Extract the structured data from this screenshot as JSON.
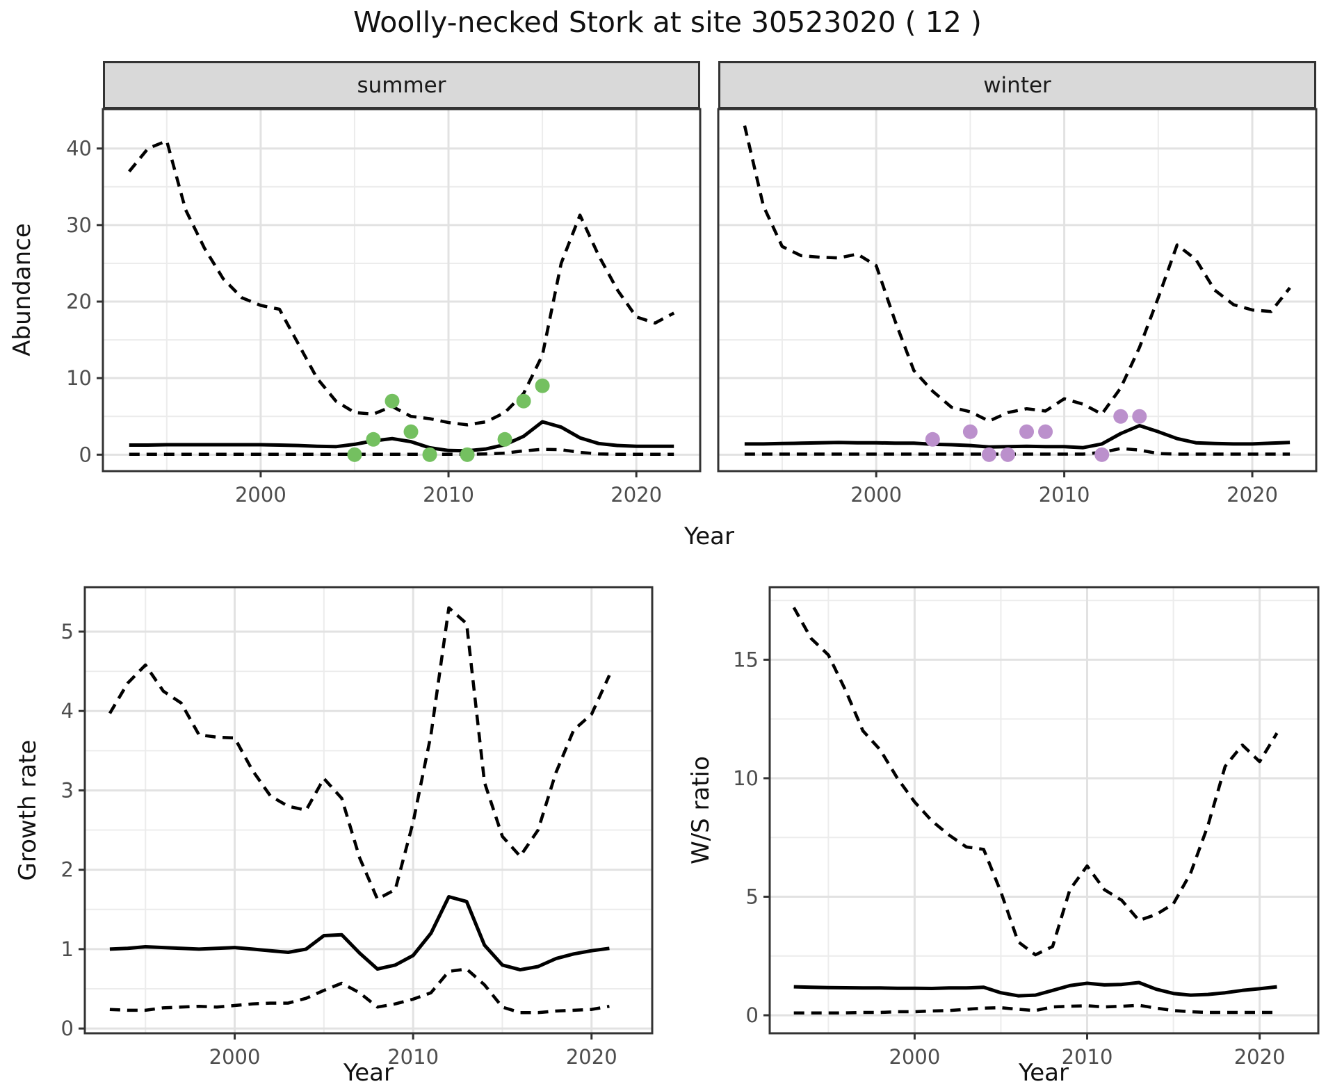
{
  "title": "Woolly-necked Stork at site 30523020 ( 12 )",
  "labels": {
    "year": "Year",
    "abundance": "Abundance",
    "growth_rate": "Growth rate",
    "ws_ratio": "W/S ratio"
  },
  "facets": {
    "summer": "summer",
    "winter": "winter"
  },
  "colors": {
    "summer_points": "#74c060",
    "winter_points": "#bb90cc",
    "line": "#000000",
    "grid_major": "#e2e2e2",
    "grid_minor": "#ececec",
    "panel_border": "#333333",
    "strip_bg": "#d9d9d9",
    "tick_text": "#4d4d4d"
  },
  "chart_data": [
    {
      "id": "abundance-summer",
      "type": "line",
      "facet": "summer",
      "xlabel": "Year",
      "ylabel": "Abundance",
      "xlim": [
        1991.6,
        2023.4
      ],
      "ylim": [
        -2.15,
        45.15
      ],
      "x_ticks": [
        2000,
        2010,
        2020
      ],
      "x_minor": [
        1995,
        2005,
        2015
      ],
      "y_ticks": [
        0,
        10,
        20,
        30,
        40
      ],
      "y_minor": [
        5,
        15,
        25,
        35
      ],
      "years": [
        1993,
        1994,
        1995,
        1996,
        1997,
        1998,
        1999,
        2000,
        2001,
        2002,
        2003,
        2004,
        2005,
        2006,
        2007,
        2008,
        2009,
        2010,
        2011,
        2012,
        2013,
        2014,
        2015,
        2016,
        2017,
        2018,
        2019,
        2020,
        2021,
        2022
      ],
      "series": [
        {
          "name": "upper-95ci",
          "style": "dashed",
          "values": [
            37,
            40,
            41,
            32,
            27,
            23,
            20.5,
            19.5,
            19,
            14.5,
            10,
            7,
            5.5,
            5.3,
            6.3,
            5,
            4.7,
            4.2,
            3.9,
            4.3,
            5.5,
            8,
            13,
            25,
            31.3,
            26,
            21.5,
            18,
            17.2,
            18.5
          ]
        },
        {
          "name": "median",
          "style": "solid",
          "values": [
            1.25,
            1.25,
            1.3,
            1.3,
            1.3,
            1.3,
            1.3,
            1.3,
            1.25,
            1.2,
            1.1,
            1.05,
            1.35,
            1.8,
            2.1,
            1.7,
            0.9,
            0.55,
            0.5,
            0.75,
            1.3,
            2.4,
            4.3,
            3.6,
            2.2,
            1.45,
            1.2,
            1.1,
            1.1,
            1.1
          ]
        },
        {
          "name": "lower-95ci",
          "style": "dashed",
          "values": [
            0.05,
            0.05,
            0.05,
            0.05,
            0.05,
            0.05,
            0.05,
            0.05,
            0.05,
            0.05,
            0.05,
            0.05,
            0.05,
            0.05,
            0.05,
            0.05,
            0.05,
            0.05,
            0.05,
            0.1,
            0.2,
            0.5,
            0.7,
            0.65,
            0.3,
            0.1,
            0.05,
            0.05,
            0.05,
            0.05
          ]
        }
      ],
      "points": {
        "name": "summer-observations",
        "color": "#74c060",
        "data": [
          [
            2005,
            0
          ],
          [
            2006,
            2
          ],
          [
            2007,
            7
          ],
          [
            2008,
            3
          ],
          [
            2009,
            0
          ],
          [
            2011,
            0
          ],
          [
            2013,
            2
          ],
          [
            2014,
            7
          ],
          [
            2015,
            9
          ]
        ]
      }
    },
    {
      "id": "abundance-winter",
      "type": "line",
      "facet": "winter",
      "xlabel": "Year",
      "ylabel": "Abundance",
      "xlim": [
        1991.6,
        2023.4
      ],
      "ylim": [
        -2.15,
        45.15
      ],
      "x_ticks": [
        2000,
        2010,
        2020
      ],
      "x_minor": [
        1995,
        2005,
        2015
      ],
      "y_ticks": [
        0,
        10,
        20,
        30,
        40
      ],
      "y_minor": [
        5,
        15,
        25,
        35
      ],
      "years": [
        1993,
        1994,
        1995,
        1996,
        1997,
        1998,
        1999,
        2000,
        2001,
        2002,
        2003,
        2004,
        2005,
        2006,
        2007,
        2008,
        2009,
        2010,
        2011,
        2012,
        2013,
        2014,
        2015,
        2016,
        2017,
        2018,
        2019,
        2020,
        2021,
        2022
      ],
      "series": [
        {
          "name": "upper-95ci",
          "style": "dashed",
          "values": [
            43,
            32.5,
            27.2,
            26,
            25.8,
            25.7,
            26.2,
            24.7,
            17.5,
            11,
            8.3,
            6.2,
            5.6,
            4.4,
            5.5,
            6.0,
            5.7,
            7.3,
            6.6,
            5.3,
            8.7,
            14,
            20.5,
            27.4,
            25.5,
            21.5,
            19.6,
            18.9,
            18.7,
            21.8
          ]
        },
        {
          "name": "median",
          "style": "solid",
          "values": [
            1.4,
            1.4,
            1.45,
            1.5,
            1.55,
            1.6,
            1.55,
            1.55,
            1.5,
            1.5,
            1.35,
            1.3,
            1.2,
            1.0,
            1.05,
            1.1,
            1.05,
            1.05,
            0.92,
            1.4,
            2.75,
            3.8,
            3.0,
            2.1,
            1.55,
            1.45,
            1.4,
            1.4,
            1.5,
            1.6
          ]
        },
        {
          "name": "lower-95ci",
          "style": "dashed",
          "values": [
            0.07,
            0.07,
            0.07,
            0.07,
            0.07,
            0.07,
            0.07,
            0.07,
            0.07,
            0.07,
            0.07,
            0.07,
            0.07,
            0.07,
            0.07,
            0.07,
            0.07,
            0.07,
            0.07,
            0.3,
            0.8,
            0.6,
            0.15,
            0.07,
            0.07,
            0.07,
            0.07,
            0.07,
            0.07,
            0.07
          ]
        }
      ],
      "points": {
        "name": "winter-observations",
        "color": "#bb90cc",
        "data": [
          [
            2003,
            2
          ],
          [
            2005,
            3
          ],
          [
            2006,
            0
          ],
          [
            2007,
            0
          ],
          [
            2008,
            3
          ],
          [
            2009,
            3
          ],
          [
            2012,
            0
          ],
          [
            2013,
            5
          ],
          [
            2014,
            5
          ]
        ]
      }
    },
    {
      "id": "growth-rate",
      "type": "line",
      "facet": "",
      "xlabel": "Year",
      "ylabel": "Growth rate",
      "xlim": [
        1991.6,
        2023.4
      ],
      "ylim": [
        -0.06,
        5.56
      ],
      "x_ticks": [
        2000,
        2010,
        2020
      ],
      "x_minor": [
        1995,
        2005,
        2015
      ],
      "y_ticks": [
        0,
        1,
        2,
        3,
        4,
        5
      ],
      "y_minor": [
        0.5,
        1.5,
        2.5,
        3.5,
        4.5
      ],
      "years": [
        1993,
        1994,
        1995,
        1996,
        1997,
        1998,
        1999,
        2000,
        2001,
        2002,
        2003,
        2004,
        2005,
        2006,
        2007,
        2008,
        2009,
        2010,
        2011,
        2012,
        2013,
        2014,
        2015,
        2016,
        2017,
        2018,
        2019,
        2020,
        2021
      ],
      "series": [
        {
          "name": "upper-95ci",
          "style": "dashed",
          "values": [
            3.97,
            4.35,
            4.58,
            4.25,
            4.1,
            3.7,
            3.67,
            3.66,
            3.25,
            2.93,
            2.8,
            2.75,
            3.15,
            2.9,
            2.15,
            1.63,
            1.75,
            2.6,
            3.7,
            5.3,
            5.1,
            3.1,
            2.42,
            2.17,
            2.5,
            3.22,
            3.76,
            3.96,
            4.45
          ]
        },
        {
          "name": "median",
          "style": "solid",
          "values": [
            1.0,
            1.01,
            1.03,
            1.02,
            1.01,
            1.0,
            1.01,
            1.02,
            1.0,
            0.98,
            0.96,
            1.0,
            1.17,
            1.18,
            0.95,
            0.75,
            0.8,
            0.92,
            1.2,
            1.66,
            1.6,
            1.05,
            0.8,
            0.74,
            0.78,
            0.88,
            0.94,
            0.98,
            1.01
          ]
        },
        {
          "name": "lower-95ci",
          "style": "dashed",
          "values": [
            0.24,
            0.23,
            0.23,
            0.26,
            0.27,
            0.28,
            0.27,
            0.29,
            0.31,
            0.32,
            0.32,
            0.38,
            0.48,
            0.57,
            0.45,
            0.27,
            0.31,
            0.37,
            0.45,
            0.72,
            0.75,
            0.55,
            0.27,
            0.2,
            0.2,
            0.22,
            0.23,
            0.24,
            0.28
          ]
        }
      ],
      "points": null
    },
    {
      "id": "ws-ratio",
      "type": "line",
      "facet": "",
      "xlabel": "Year",
      "ylabel": "W/S ratio",
      "xlim": [
        1991.6,
        2023.4
      ],
      "ylim": [
        -0.76,
        18.06
      ],
      "x_ticks": [
        2000,
        2010,
        2020
      ],
      "x_minor": [
        1995,
        2005,
        2015
      ],
      "y_ticks": [
        0,
        5,
        10,
        15
      ],
      "y_minor": [
        2.5,
        7.5,
        12.5,
        17.5
      ],
      "years": [
        1993,
        1994,
        1995,
        1996,
        1997,
        1998,
        1999,
        2000,
        2001,
        2002,
        2003,
        2004,
        2005,
        2006,
        2007,
        2008,
        2009,
        2010,
        2011,
        2012,
        2013,
        2014,
        2015,
        2016,
        2017,
        2018,
        2019,
        2020,
        2021
      ],
      "series": [
        {
          "name": "upper-95ci",
          "style": "dashed",
          "values": [
            17.2,
            15.9,
            15.2,
            13.7,
            12.0,
            11.2,
            10.0,
            9.0,
            8.2,
            7.6,
            7.1,
            7.0,
            5.2,
            3.1,
            2.55,
            2.9,
            5.3,
            6.3,
            5.3,
            4.85,
            4.0,
            4.25,
            4.7,
            6.0,
            8.0,
            10.5,
            11.4,
            10.7,
            11.9
          ]
        },
        {
          "name": "median",
          "style": "solid",
          "values": [
            1.2,
            1.18,
            1.17,
            1.16,
            1.15,
            1.15,
            1.14,
            1.14,
            1.13,
            1.15,
            1.15,
            1.18,
            0.95,
            0.82,
            0.85,
            1.05,
            1.25,
            1.35,
            1.28,
            1.3,
            1.38,
            1.1,
            0.92,
            0.85,
            0.88,
            0.95,
            1.05,
            1.12,
            1.2
          ]
        },
        {
          "name": "lower-95ci",
          "style": "dashed",
          "values": [
            0.1,
            0.1,
            0.1,
            0.1,
            0.12,
            0.12,
            0.15,
            0.15,
            0.18,
            0.2,
            0.25,
            0.3,
            0.32,
            0.25,
            0.2,
            0.35,
            0.38,
            0.4,
            0.35,
            0.38,
            0.42,
            0.3,
            0.2,
            0.15,
            0.12,
            0.12,
            0.12,
            0.12,
            0.12
          ]
        }
      ],
      "points": null
    }
  ]
}
